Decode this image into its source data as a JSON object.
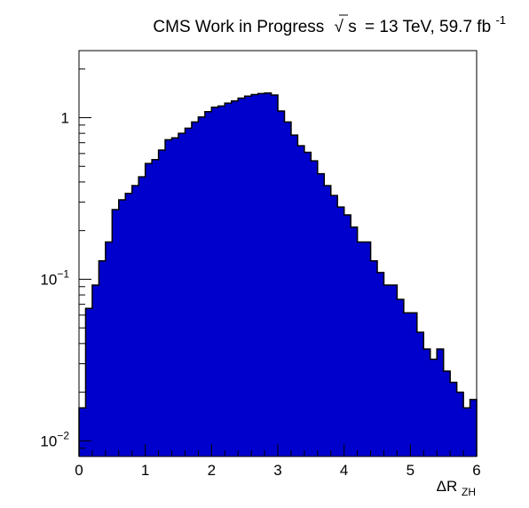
{
  "chart_data": {
    "type": "bar",
    "title_prefix": "CMS Work in Progress",
    "title_sqrt_s": "s",
    "title_energy": "= 13 TeV, 59.7 fb",
    "title_lumi_exp": "-1",
    "xlabel": "ΔR",
    "xlabel_sub": "ZH",
    "ylabel": "",
    "y_scale": "log",
    "xlim": [
      0,
      6
    ],
    "ylim": [
      0.008,
      2.6
    ],
    "x_ticks": [
      "0",
      "1",
      "2",
      "3",
      "4",
      "5",
      "6"
    ],
    "y_ticks": [
      {
        "value": 1,
        "mantissa": "1",
        "exp": ""
      },
      {
        "value": 0.1,
        "mantissa": "10",
        "exp": "−1"
      },
      {
        "value": 0.01,
        "mantissa": "10",
        "exp": "−2"
      }
    ],
    "bin_width": 0.1,
    "x_bin_edges_start": 0,
    "values": [
      0.016,
      0.066,
      0.092,
      0.13,
      0.17,
      0.27,
      0.31,
      0.34,
      0.38,
      0.43,
      0.52,
      0.55,
      0.63,
      0.73,
      0.75,
      0.8,
      0.86,
      0.94,
      1.01,
      1.09,
      1.16,
      1.18,
      1.23,
      1.27,
      1.32,
      1.36,
      1.39,
      1.41,
      1.42,
      1.38,
      1.1,
      0.94,
      0.78,
      0.67,
      0.61,
      0.54,
      0.45,
      0.38,
      0.33,
      0.28,
      0.25,
      0.21,
      0.17,
      0.17,
      0.13,
      0.11,
      0.092,
      0.092,
      0.075,
      0.062,
      0.062,
      0.047,
      0.037,
      0.032,
      0.037,
      0.027,
      0.023,
      0.02,
      0.016,
      0.018
    ],
    "fill_color": "#0000cc",
    "line_color": "#000000",
    "grid": false,
    "legend": "none"
  }
}
